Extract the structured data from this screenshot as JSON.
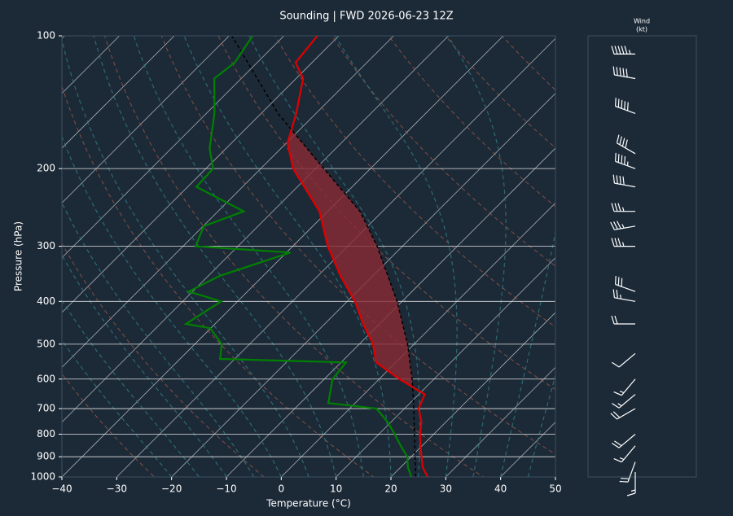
{
  "chart_data": {
    "type": "skewt",
    "title": "Sounding | FWD 2026-06-23 12Z",
    "xlabel": "Temperature (°C)",
    "ylabel": "Pressure (hPa)",
    "xlim": [
      -40,
      50
    ],
    "xticks": [
      {
        "value": -40,
        "label": "−40"
      },
      {
        "value": -30,
        "label": "−30"
      },
      {
        "value": -20,
        "label": "−20"
      },
      {
        "value": -10,
        "label": "−10"
      },
      0,
      10,
      20,
      30,
      40,
      50
    ],
    "ylim": [
      1000,
      100
    ],
    "yticks": [
      100,
      200,
      300,
      400,
      500,
      600,
      700,
      800,
      900,
      1000
    ],
    "log_y": true,
    "grid": true,
    "series": [
      {
        "color": "#e00000",
        "linestyle": "solid",
        "pressure": [
          1000,
          950,
          900,
          850,
          800,
          750,
          700,
          650,
          600,
          550,
          500,
          450,
          400,
          350,
          300,
          250,
          200,
          175,
          150,
          125,
          115,
          100
        ],
        "values": [
          26.7,
          24.0,
          21.9,
          19.7,
          17.5,
          15.5,
          12.6,
          11.1,
          3.7,
          -3.6,
          -7.5,
          -13,
          -18.6,
          -25.9,
          -33.6,
          -41.5,
          -54.1,
          -59.8,
          -63.6,
          -68.7,
          -73,
          -73.9
        ]
      },
      {
        "color": "#008000",
        "linestyle": "solid",
        "pressure": [
          1000,
          950,
          900,
          850,
          800,
          750,
          700,
          680,
          600,
          550,
          540,
          500,
          460,
          450,
          400,
          380,
          350,
          310,
          300,
          270,
          250,
          220,
          200,
          180,
          150,
          125,
          115,
          100
        ],
        "values": [
          23.7,
          21.3,
          19.3,
          16.1,
          12.9,
          9.3,
          4.9,
          -4.9,
          -8.5,
          -9.1,
          -32.7,
          -35.1,
          -40.1,
          -45.3,
          -43,
          -50.7,
          -47.9,
          -39.3,
          -57.7,
          -59.9,
          -55.3,
          -68.4,
          -68.7,
          -73,
          -78.5,
          -84.9,
          -84.1,
          -85.7
        ]
      },
      {
        "color": "#000000",
        "linestyle": "dashed",
        "pressure": [
          1000,
          700,
          600,
          500,
          400,
          300,
          250,
          200,
          150,
          100
        ],
        "values": [
          24.5,
          11.7,
          6,
          -1.2,
          -10.9,
          -24.6,
          -34.1,
          -48.5,
          -66.9,
          -89.5
        ]
      }
    ],
    "cape_color": "#8b2a33",
    "wind": {
      "title": "Wind",
      "units": "(kt)",
      "pressure": [
        975,
        925,
        850,
        800,
        700,
        650,
        600,
        525,
        450,
        400,
        380,
        300,
        270,
        250,
        220,
        200,
        185,
        150,
        125,
        110
      ],
      "speed": [
        15,
        20,
        15,
        20,
        20,
        15,
        15,
        10,
        20,
        25,
        30,
        35,
        35,
        35,
        40,
        45,
        40,
        50,
        50,
        55
      ],
      "direction": [
        180,
        200,
        220,
        230,
        240,
        230,
        220,
        230,
        270,
        280,
        290,
        270,
        260,
        270,
        280,
        290,
        300,
        290,
        280,
        270
      ]
    }
  }
}
